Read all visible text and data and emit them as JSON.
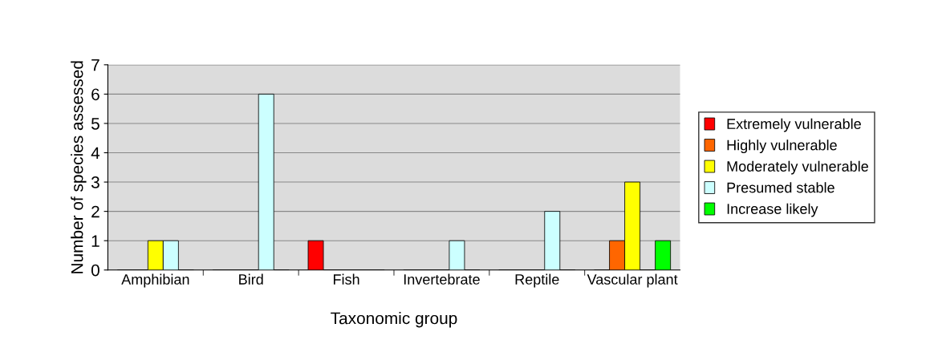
{
  "chart_data": {
    "type": "bar",
    "xlabel": "Taxonomic group",
    "ylabel": "Number of species assessed",
    "categories": [
      "Amphibian",
      "Bird",
      "Fish",
      "Invertebrate",
      "Reptile",
      "Vascular plant"
    ],
    "series": [
      {
        "name": "Extremely vulnerable",
        "color": "#ff0000",
        "values": [
          0,
          0,
          1,
          0,
          0,
          0
        ]
      },
      {
        "name": "Highly vulnerable",
        "color": "#ff6600",
        "values": [
          0,
          0,
          0,
          0,
          0,
          1
        ]
      },
      {
        "name": "Moderately vulnerable",
        "color": "#ffff00",
        "values": [
          1,
          0,
          0,
          0,
          0,
          3
        ]
      },
      {
        "name": "Presumed stable",
        "color": "#ccffff",
        "values": [
          1,
          6,
          0,
          1,
          2,
          0
        ]
      },
      {
        "name": "Increase likely",
        "color": "#00ff00",
        "values": [
          0,
          0,
          0,
          0,
          0,
          1
        ]
      }
    ],
    "ylim": [
      0,
      7
    ],
    "yticks": [
      0,
      1,
      2,
      3,
      4,
      5,
      6,
      7
    ],
    "grid": "y",
    "legend": "right"
  }
}
